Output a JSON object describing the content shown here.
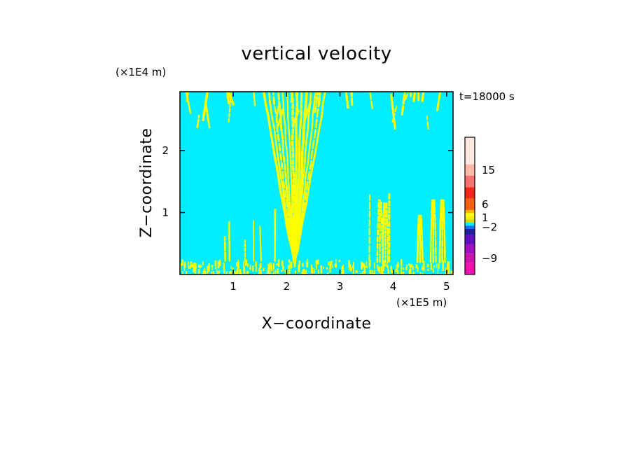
{
  "chart_data": {
    "type": "heatmap",
    "title": "vertical velocity",
    "time_label": "t=18000 s",
    "xlabel": "X−coordinate",
    "ylabel": "Z−coordinate",
    "x_unit": "(×1E5 m)",
    "y_unit": "(×1E4 m)",
    "x_scale_factor": 100000,
    "y_scale_factor": 10000,
    "xlim": [
      0,
      5.12
    ],
    "ylim": [
      0,
      2.95
    ],
    "x_ticks": [
      1,
      2,
      3,
      4,
      5
    ],
    "x_tick_labels": [
      "1",
      "2",
      "3",
      "4",
      "5"
    ],
    "y_ticks": [
      1,
      2
    ],
    "y_tick_labels": [
      "1",
      "2"
    ],
    "background_color": "#00eeff",
    "positive_color": "#ffff00",
    "colorbar": {
      "levels_top_to_bottom": [
        {
          "color": "#ffe8e0"
        },
        {
          "color": "#ffb8a8"
        },
        {
          "color": "#f87070"
        },
        {
          "color": "#f02818"
        },
        {
          "color": "#f06010"
        },
        {
          "color": "#f8b800"
        },
        {
          "color": "#ffff00"
        },
        {
          "color": "#f0f000"
        },
        {
          "color": "#d8d800"
        },
        {
          "color": "#00eeff"
        },
        {
          "color": "#1070ff"
        },
        {
          "color": "#2020a0"
        },
        {
          "color": "#6010c0"
        },
        {
          "color": "#a010c0"
        },
        {
          "color": "#d010b0"
        },
        {
          "color": "#f010b0"
        }
      ],
      "labels": [
        {
          "text": "15",
          "value": 15
        },
        {
          "text": "6",
          "value": 6
        },
        {
          "text": "1",
          "value": 1
        },
        {
          "text": "−2",
          "value": -2
        },
        {
          "text": "−9",
          "value": -9
        }
      ]
    },
    "updraft_features": {
      "v_shape_bundle": {
        "x_center": 2.15,
        "apex_z": 0.2,
        "top_z": 2.95,
        "spread_x": 1.15,
        "strands": 14
      },
      "upper_band_region": {
        "z_from": 2.35,
        "z_to": 2.95
      },
      "right_plumes": [
        {
          "x": 3.75,
          "height_z": 1.2
        },
        {
          "x": 3.85,
          "height_z": 1.15
        },
        {
          "x": 4.5,
          "height_z": 0.95
        },
        {
          "x": 4.75,
          "height_z": 1.2
        },
        {
          "x": 4.92,
          "height_z": 1.2
        }
      ],
      "scattered_plumes_x": [
        0.85,
        0.93,
        1.22,
        1.38,
        1.52,
        1.78,
        3.55,
        3.92,
        4.55
      ],
      "surface_layer_top_z": 0.25
    }
  }
}
